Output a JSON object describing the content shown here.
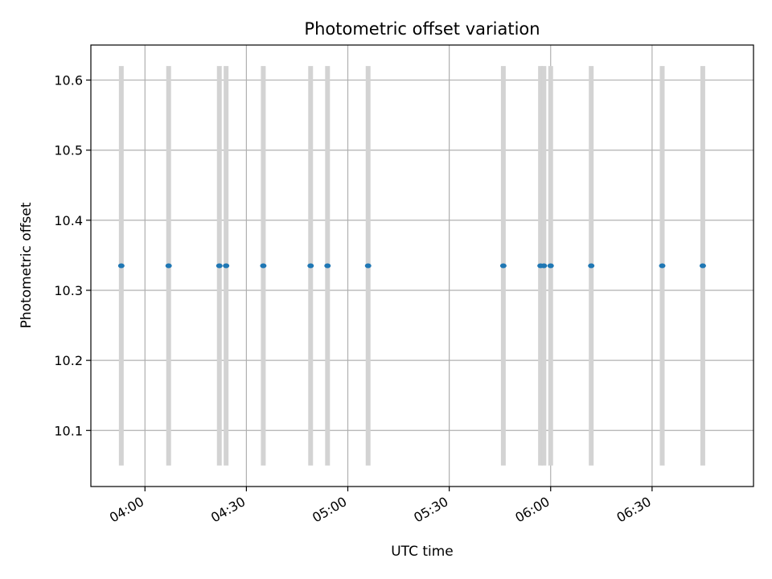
{
  "chart_data": {
    "type": "scatter",
    "title": "Photometric offset variation",
    "xlabel": "UTC time",
    "ylabel": "Photometric offset",
    "xlim": [
      "03:44",
      "07:00"
    ],
    "ylim": [
      10.02,
      10.65
    ],
    "x_ticks": [
      "04:00",
      "04:30",
      "05:00",
      "05:30",
      "06:00",
      "06:30"
    ],
    "y_ticks": [
      10.1,
      10.2,
      10.3,
      10.4,
      10.5,
      10.6
    ],
    "grid": true,
    "legend": "none",
    "colors": {
      "points": "#1f77b4",
      "bars": "#d3d3d3",
      "grid": "#b0b0b0"
    },
    "x": [
      "03:53",
      "04:07",
      "04:22",
      "04:24",
      "04:35",
      "04:49",
      "04:54",
      "05:06",
      "05:46",
      "05:57",
      "05:58",
      "06:00",
      "06:12",
      "06:33",
      "06:45"
    ],
    "y": [
      10.335,
      10.335,
      10.335,
      10.335,
      10.335,
      10.335,
      10.335,
      10.335,
      10.335,
      10.335,
      10.335,
      10.335,
      10.335,
      10.335,
      10.335
    ],
    "y_low": [
      10.05,
      10.05,
      10.05,
      10.05,
      10.05,
      10.05,
      10.05,
      10.05,
      10.05,
      10.05,
      10.05,
      10.05,
      10.05,
      10.05,
      10.05
    ],
    "y_high": [
      10.62,
      10.62,
      10.62,
      10.62,
      10.62,
      10.62,
      10.62,
      10.62,
      10.62,
      10.62,
      10.62,
      10.62,
      10.62,
      10.62,
      10.62
    ]
  }
}
